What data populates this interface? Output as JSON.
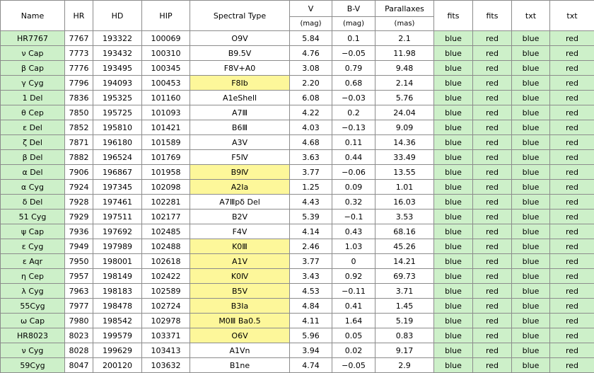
{
  "headers": {
    "name": "Name",
    "hr": "HR",
    "hd": "HD",
    "hip": "HIP",
    "spectral_type": "Spectral Type",
    "v": "V",
    "v_unit": "(mag)",
    "bv": "B-V",
    "bv_unit": "(mag)",
    "parallax": "Parallaxes",
    "parallax_unit": "(mas)",
    "fits_blue": "fits",
    "fits_red": "fits",
    "txt_blue": "txt",
    "txt_red": "txt"
  },
  "highlight_colors": {
    "name_cell": "#cdf0c9",
    "link_cell": "#cdf0c9",
    "spectral_type_highlight": "#fdf79a"
  },
  "rows": [
    {
      "name": "HR7767",
      "hr": "7767",
      "hd": "193322",
      "hip": "100069",
      "sp": "O9Ⅴ",
      "sp_hl": false,
      "v": "5.84",
      "bv": "0.1",
      "plx": "2.1",
      "fb": "blue",
      "fr": "red",
      "tb": "blue",
      "tr": "red"
    },
    {
      "name": "ν Cap",
      "hr": "7773",
      "hd": "193432",
      "hip": "100310",
      "sp": "B9.5Ⅴ",
      "sp_hl": false,
      "v": "4.76",
      "bv": "−0.05",
      "plx": "11.98",
      "fb": "blue",
      "fr": "red",
      "tb": "blue",
      "tr": "red"
    },
    {
      "name": "β Cap",
      "hr": "7776",
      "hd": "193495",
      "hip": "100345",
      "sp": "F8Ⅴ+A0",
      "sp_hl": false,
      "v": "3.08",
      "bv": "0.79",
      "plx": "9.48",
      "fb": "blue",
      "fr": "red",
      "tb": "blue",
      "tr": "red"
    },
    {
      "name": "γ Cyg",
      "hr": "7796",
      "hd": "194093",
      "hip": "100453",
      "sp": "F8Ⅰb",
      "sp_hl": true,
      "v": "2.20",
      "bv": "0.68",
      "plx": "2.14",
      "fb": "blue",
      "fr": "red",
      "tb": "blue",
      "tr": "red"
    },
    {
      "name": "1 Del",
      "hr": "7836",
      "hd": "195325",
      "hip": "101160",
      "sp": "A1eShell",
      "sp_hl": false,
      "v": "6.08",
      "bv": "−0.03",
      "plx": "5.76",
      "fb": "blue",
      "fr": "red",
      "tb": "blue",
      "tr": "red"
    },
    {
      "name": "θ Cep",
      "hr": "7850",
      "hd": "195725",
      "hip": "101093",
      "sp": "A7Ⅲ",
      "sp_hl": false,
      "v": "4.22",
      "bv": "0.2",
      "plx": "24.04",
      "fb": "blue",
      "fr": "red",
      "tb": "blue",
      "tr": "red"
    },
    {
      "name": "ε Del",
      "hr": "7852",
      "hd": "195810",
      "hip": "101421",
      "sp": "B6Ⅲ",
      "sp_hl": false,
      "v": "4.03",
      "bv": "−0.13",
      "plx": "9.09",
      "fb": "blue",
      "fr": "red",
      "tb": "blue",
      "tr": "red"
    },
    {
      "name": "ζ Del",
      "hr": "7871",
      "hd": "196180",
      "hip": "101589",
      "sp": "A3Ⅴ",
      "sp_hl": false,
      "v": "4.68",
      "bv": "0.11",
      "plx": "14.36",
      "fb": "blue",
      "fr": "red",
      "tb": "blue",
      "tr": "red"
    },
    {
      "name": "β Del",
      "hr": "7882",
      "hd": "196524",
      "hip": "101769",
      "sp": "F5Ⅳ",
      "sp_hl": false,
      "v": "3.63",
      "bv": "0.44",
      "plx": "33.49",
      "fb": "blue",
      "fr": "red",
      "tb": "blue",
      "tr": "red"
    },
    {
      "name": "α Del",
      "hr": "7906",
      "hd": "196867",
      "hip": "101958",
      "sp": "B9Ⅳ",
      "sp_hl": true,
      "v": "3.77",
      "bv": "−0.06",
      "plx": "13.55",
      "fb": "blue",
      "fr": "red",
      "tb": "blue",
      "tr": "red"
    },
    {
      "name": "α Cyg",
      "hr": "7924",
      "hd": "197345",
      "hip": "102098",
      "sp": "A2Ⅰa",
      "sp_hl": true,
      "v": "1.25",
      "bv": "0.09",
      "plx": "1.01",
      "fb": "blue",
      "fr": "red",
      "tb": "blue",
      "tr": "red"
    },
    {
      "name": "δ Del",
      "hr": "7928",
      "hd": "197461",
      "hip": "102281",
      "sp": "A7Ⅲpδ Del",
      "sp_hl": false,
      "v": "4.43",
      "bv": "0.32",
      "plx": "16.03",
      "fb": "blue",
      "fr": "red",
      "tb": "blue",
      "tr": "red"
    },
    {
      "name": "51 Cyg",
      "hr": "7929",
      "hd": "197511",
      "hip": "102177",
      "sp": "B2Ⅴ",
      "sp_hl": false,
      "v": "5.39",
      "bv": "−0.1",
      "plx": "3.53",
      "fb": "blue",
      "fr": "red",
      "tb": "blue",
      "tr": "red"
    },
    {
      "name": "ψ Cap",
      "hr": "7936",
      "hd": "197692",
      "hip": "102485",
      "sp": "F4Ⅴ",
      "sp_hl": false,
      "v": "4.14",
      "bv": "0.43",
      "plx": "68.16",
      "fb": "blue",
      "fr": "red",
      "tb": "blue",
      "tr": "red"
    },
    {
      "name": "ε Cyg",
      "hr": "7949",
      "hd": "197989",
      "hip": "102488",
      "sp": "K0Ⅲ",
      "sp_hl": true,
      "v": "2.46",
      "bv": "1.03",
      "plx": "45.26",
      "fb": "blue",
      "fr": "red",
      "tb": "blue",
      "tr": "red"
    },
    {
      "name": "ε Aqr",
      "hr": "7950",
      "hd": "198001",
      "hip": "102618",
      "sp": "A1Ⅴ",
      "sp_hl": true,
      "v": "3.77",
      "bv": "0",
      "plx": "14.21",
      "fb": "blue",
      "fr": "red",
      "tb": "blue",
      "tr": "red"
    },
    {
      "name": "η Cep",
      "hr": "7957",
      "hd": "198149",
      "hip": "102422",
      "sp": "K0Ⅳ",
      "sp_hl": true,
      "v": "3.43",
      "bv": "0.92",
      "plx": "69.73",
      "fb": "blue",
      "fr": "red",
      "tb": "blue",
      "tr": "red"
    },
    {
      "name": "λ Cyg",
      "hr": "7963",
      "hd": "198183",
      "hip": "102589",
      "sp": "B5Ⅴ",
      "sp_hl": true,
      "v": "4.53",
      "bv": "−0.11",
      "plx": "3.71",
      "fb": "blue",
      "fr": "red",
      "tb": "blue",
      "tr": "red"
    },
    {
      "name": "55Cyg",
      "hr": "7977",
      "hd": "198478",
      "hip": "102724",
      "sp": "B3Ⅰa",
      "sp_hl": true,
      "v": "4.84",
      "bv": "0.41",
      "plx": "1.45",
      "fb": "blue",
      "fr": "red",
      "tb": "blue",
      "tr": "red"
    },
    {
      "name": "ω Cap",
      "hr": "7980",
      "hd": "198542",
      "hip": "102978",
      "sp": "M0Ⅲ Ba0.5",
      "sp_hl": true,
      "v": "4.11",
      "bv": "1.64",
      "plx": "5.19",
      "fb": "blue",
      "fr": "red",
      "tb": "blue",
      "tr": "red"
    },
    {
      "name": "HR8023",
      "hr": "8023",
      "hd": "199579",
      "hip": "103371",
      "sp": "O6Ⅴ",
      "sp_hl": true,
      "v": "5.96",
      "bv": "0.05",
      "plx": "0.83",
      "fb": "blue",
      "fr": "red",
      "tb": "blue",
      "tr": "red"
    },
    {
      "name": "ν Cyg",
      "hr": "8028",
      "hd": "199629",
      "hip": "103413",
      "sp": "A1Ⅴn",
      "sp_hl": false,
      "v": "3.94",
      "bv": "0.02",
      "plx": "9.17",
      "fb": "blue",
      "fr": "red",
      "tb": "blue",
      "tr": "red"
    },
    {
      "name": "59Cyg",
      "hr": "8047",
      "hd": "200120",
      "hip": "103632",
      "sp": "B1ne",
      "sp_hl": false,
      "v": "4.74",
      "bv": "−0.05",
      "plx": "2.9",
      "fb": "blue",
      "fr": "red",
      "tb": "blue",
      "tr": "red"
    }
  ]
}
